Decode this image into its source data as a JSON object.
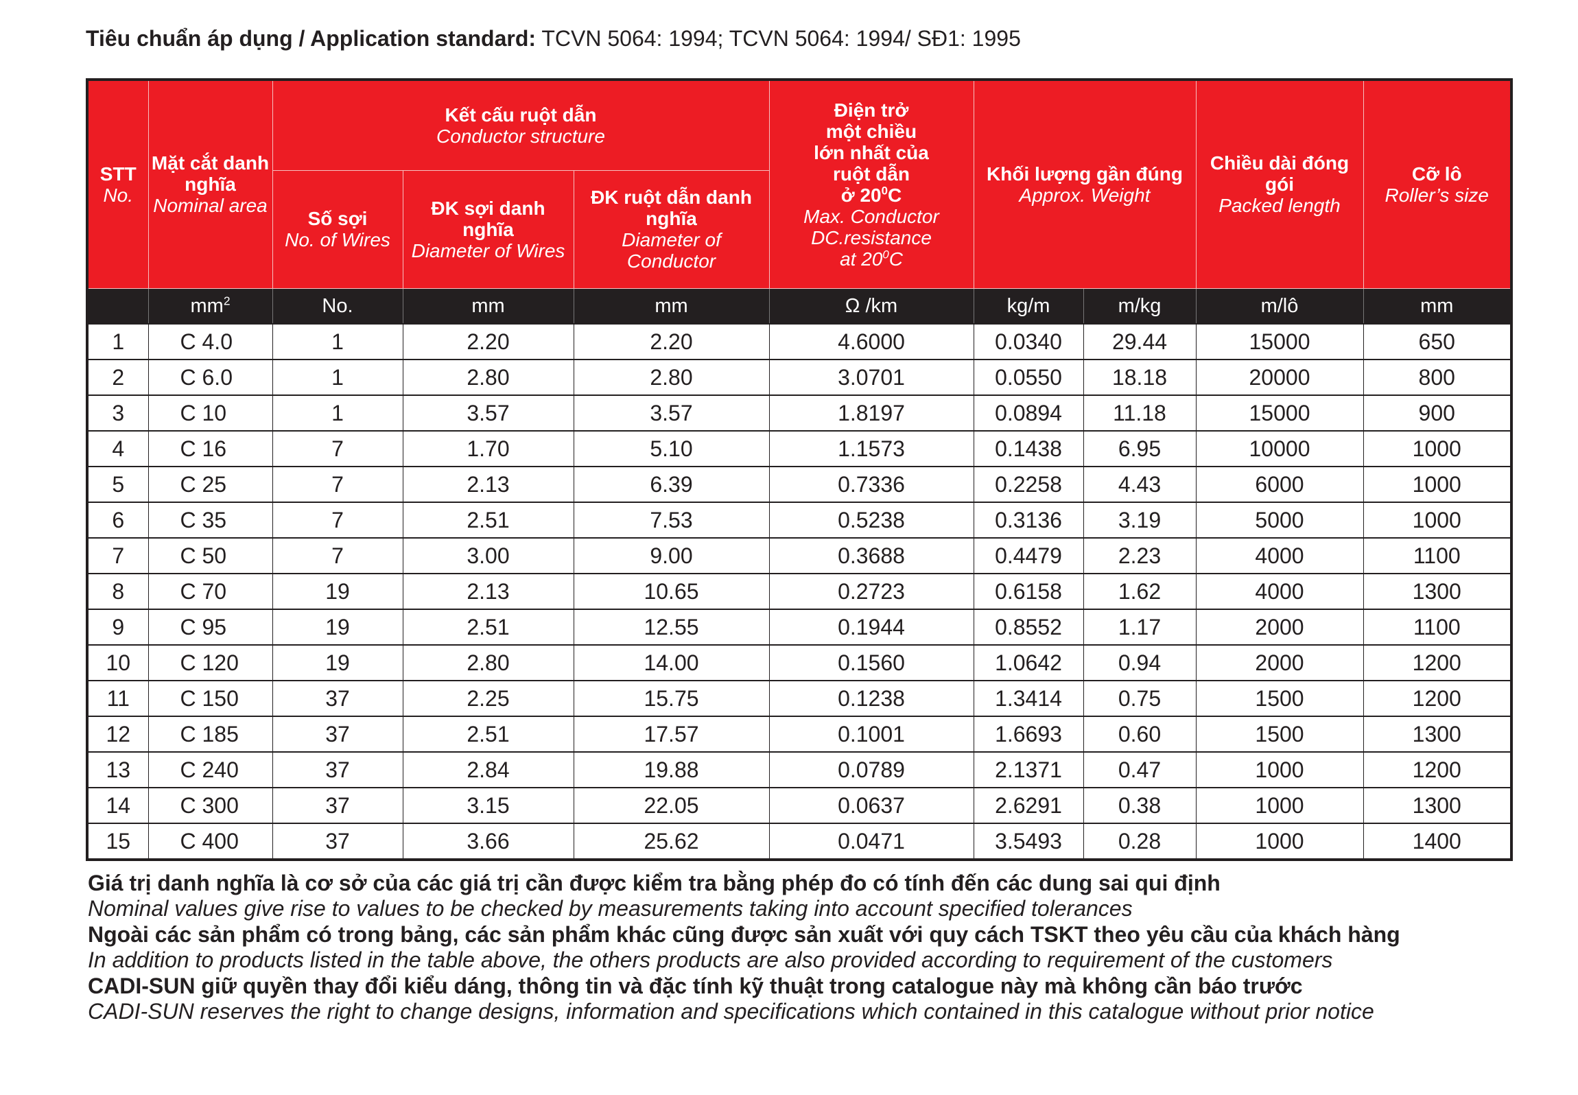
{
  "standard": {
    "label": "Tiêu chuẩn áp dụng / Application standard:",
    "value": " TCVN 5064: 1994; TCVN 5064: 1994/ SĐ1: 1995"
  },
  "colors": {
    "header_bg": "#ed1c24",
    "units_bg": "#231f20",
    "text": "#231f20"
  },
  "headers": {
    "stt": {
      "vi": "STT",
      "en": "No."
    },
    "area": {
      "vi": "Mặt cắt danh nghĩa",
      "en": "Nominal area"
    },
    "structure": {
      "vi": "Kết cấu ruột dẫn",
      "en": "Conductor structure"
    },
    "wires": {
      "vi": "Số sợi",
      "en": "No. of Wires"
    },
    "wire_dia": {
      "vi": "ĐK sợi danh nghĩa",
      "en": "Diameter of Wires"
    },
    "cond_dia": {
      "vi": "ĐK ruột dẫn danh nghĩa",
      "en": "Diameter of Conductor"
    },
    "resistance": {
      "vi1": "Điện trở",
      "vi2": "một chiều",
      "vi3": "lớn nhất của",
      "vi4": "ruột dẫn",
      "vi5": "ở 20",
      "vi5_sup": "0",
      "vi5_end": "C",
      "en1": "Max. Conductor",
      "en2": "DC.resistance",
      "en3": "at 20",
      "en3_sup": "0",
      "en3_end": "C"
    },
    "weight": {
      "vi": "Khối lượng gần đúng",
      "en": "Approx. Weight"
    },
    "length": {
      "vi": "Chiều dài đóng gói",
      "en": "Packed length"
    },
    "roller": {
      "vi": "Cỡ lô",
      "en": "Roller’s size"
    }
  },
  "units": [
    "",
    "mm",
    "2",
    "No.",
    "mm",
    "mm",
    "Ω /km",
    "kg/m",
    "m/kg",
    "m/lô",
    "mm"
  ],
  "rows": [
    [
      "1",
      "C 4.0",
      "1",
      "2.20",
      "2.20",
      "4.6000",
      "0.0340",
      "29.44",
      "15000",
      "650"
    ],
    [
      "2",
      "C 6.0",
      "1",
      "2.80",
      "2.80",
      "3.0701",
      "0.0550",
      "18.18",
      "20000",
      "800"
    ],
    [
      "3",
      "C 10",
      "1",
      "3.57",
      "3.57",
      "1.8197",
      "0.0894",
      "11.18",
      "15000",
      "900"
    ],
    [
      "4",
      "C 16",
      "7",
      "1.70",
      "5.10",
      "1.1573",
      "0.1438",
      "6.95",
      "10000",
      "1000"
    ],
    [
      "5",
      "C 25",
      "7",
      "2.13",
      "6.39",
      "0.7336",
      "0.2258",
      "4.43",
      "6000",
      "1000"
    ],
    [
      "6",
      "C 35",
      "7",
      "2.51",
      "7.53",
      "0.5238",
      "0.3136",
      "3.19",
      "5000",
      "1000"
    ],
    [
      "7",
      "C 50",
      "7",
      "3.00",
      "9.00",
      "0.3688",
      "0.4479",
      "2.23",
      "4000",
      "1100"
    ],
    [
      "8",
      "C 70",
      "19",
      "2.13",
      "10.65",
      "0.2723",
      "0.6158",
      "1.62",
      "4000",
      "1300"
    ],
    [
      "9",
      "C 95",
      "19",
      "2.51",
      "12.55",
      "0.1944",
      "0.8552",
      "1.17",
      "2000",
      "1100"
    ],
    [
      "10",
      "C 120",
      "19",
      "2.80",
      "14.00",
      "0.1560",
      "1.0642",
      "0.94",
      "2000",
      "1200"
    ],
    [
      "11",
      "C 150",
      "37",
      "2.25",
      "15.75",
      "0.1238",
      "1.3414",
      "0.75",
      "1500",
      "1200"
    ],
    [
      "12",
      "C 185",
      "37",
      "2.51",
      "17.57",
      "0.1001",
      "1.6693",
      "0.60",
      "1500",
      "1300"
    ],
    [
      "13",
      "C 240",
      "37",
      "2.84",
      "19.88",
      "0.0789",
      "2.1371",
      "0.47",
      "1000",
      "1200"
    ],
    [
      "14",
      "C 300",
      "37",
      "3.15",
      "22.05",
      "0.0637",
      "2.6291",
      "0.38",
      "1000",
      "1300"
    ],
    [
      "15",
      "C 400",
      "37",
      "3.66",
      "25.62",
      "0.0471",
      "3.5493",
      "0.28",
      "1000",
      "1400"
    ]
  ],
  "notes": [
    {
      "vi": "Giá trị danh nghĩa là cơ sở của các giá trị cần được kiểm tra bằng phép đo có tính đến các dung sai qui định",
      "en": "Nominal values give rise to values to be checked by measurements taking into account specified tolerances"
    },
    {
      "vi": "Ngoài các sản phẩm có trong bảng, các sản phẩm khác cũng được sản xuất với quy cách TSKT theo yêu cầu của khách hàng",
      "en": "In addition to products listed in the table above, the others products are also provided according to requirement of the customers"
    },
    {
      "vi": "CADI-SUN giữ quyền thay đổi kiểu dáng, thông tin và đặc tính kỹ thuật trong catalogue này mà không cần báo trước",
      "en": "CADI-SUN reserves the right to change designs, information and specifications which contained in this catalogue without prior notice"
    }
  ]
}
